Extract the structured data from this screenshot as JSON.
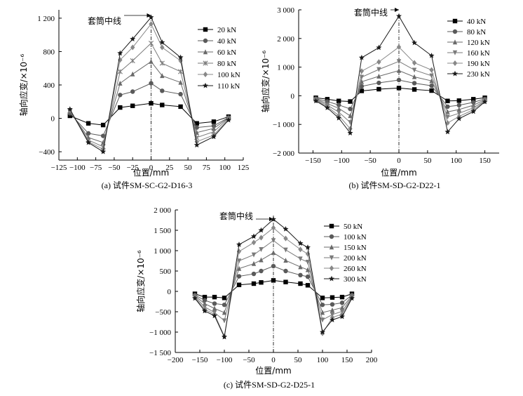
{
  "chart_data": [
    {
      "type": "line",
      "caption": "(a) 试件SM-SC-G2-D16-3",
      "xlabel": "位置/mm",
      "ylabel": "轴向应变/×10⁻⁶",
      "xlim": [
        -125,
        125
      ],
      "ylim": [
        -500,
        1300
      ],
      "xticks": [
        -125,
        -100,
        -75,
        -50,
        -25,
        0,
        25,
        50,
        75,
        100,
        125
      ],
      "yticks": [
        -400,
        0,
        400,
        800,
        1200
      ],
      "xtick_labels": [
        "−125",
        "−100",
        "−75",
        "−50",
        "−25",
        "0",
        "25",
        "50",
        "75",
        "100",
        "125"
      ],
      "ytick_labels": [
        "−400",
        "0",
        "400",
        "800",
        "1 200"
      ],
      "annotation": "套筒中线",
      "centerline_x": 0,
      "legend_position": "top-right",
      "x": [
        -110,
        -85,
        -65,
        -42,
        -25,
        0,
        15,
        40,
        62,
        85,
        105
      ],
      "series": [
        {
          "name": "20 kN",
          "marker": "square",
          "values": [
            30,
            -60,
            -80,
            130,
            150,
            180,
            160,
            140,
            -60,
            -40,
            20
          ]
        },
        {
          "name": "40 kN",
          "marker": "circle",
          "values": [
            60,
            -180,
            -210,
            280,
            320,
            420,
            330,
            290,
            -110,
            -90,
            10
          ]
        },
        {
          "name": "60 kN",
          "marker": "triangle",
          "values": [
            80,
            -230,
            -290,
            420,
            530,
            680,
            510,
            430,
            -170,
            -120,
            5
          ]
        },
        {
          "name": "80 kN",
          "marker": "x",
          "values": [
            90,
            -260,
            -340,
            560,
            690,
            900,
            660,
            560,
            -230,
            -160,
            0
          ]
        },
        {
          "name": "100 kN",
          "marker": "diamond",
          "values": [
            100,
            -280,
            -370,
            700,
            850,
            1130,
            850,
            690,
            -280,
            -200,
            -10
          ]
        },
        {
          "name": "110 kN",
          "marker": "star",
          "values": [
            110,
            -290,
            -400,
            780,
            950,
            1210,
            910,
            730,
            -320,
            -220,
            -20
          ]
        }
      ]
    },
    {
      "type": "line",
      "caption": "(b) 试件SM-SD-G2-D22-1",
      "xlabel": "位置/mm",
      "ylabel": "轴向应变/×10⁻⁶",
      "xlim": [
        -175,
        175
      ],
      "ylim": [
        -2000,
        3000
      ],
      "xticks": [
        -150,
        -100,
        -50,
        0,
        50,
        100,
        150
      ],
      "yticks": [
        -2000,
        -1000,
        0,
        1000,
        2000,
        3000
      ],
      "xtick_labels": [
        "−150",
        "−100",
        "−50",
        "0",
        "50",
        "100",
        "150"
      ],
      "ytick_labels": [
        "−2 000",
        "−1 000",
        "0",
        "1 000",
        "2 000",
        "3 000"
      ],
      "annotation": "套筒中线",
      "centerline_x": 0,
      "legend_position": "top-right",
      "x": [
        -145,
        -125,
        -105,
        -85,
        -65,
        -35,
        0,
        27,
        57,
        85,
        105,
        130,
        150
      ],
      "series": [
        {
          "name": "40 kN",
          "marker": "square",
          "values": [
            -70,
            -120,
            -180,
            -200,
            170,
            230,
            270,
            220,
            180,
            -180,
            -170,
            -120,
            -70
          ]
        },
        {
          "name": "80 kN",
          "marker": "circle",
          "values": [
            -100,
            -200,
            -320,
            -460,
            330,
            450,
            550,
            440,
            350,
            -380,
            -330,
            -230,
            -110
          ]
        },
        {
          "name": "120 kN",
          "marker": "triangle",
          "values": [
            -120,
            -270,
            -440,
            -700,
            490,
            680,
            880,
            660,
            520,
            -560,
            -480,
            -330,
            -140
          ]
        },
        {
          "name": "160 kN",
          "marker": "tri-down",
          "values": [
            -140,
            -330,
            -570,
            -930,
            650,
            920,
            1200,
            900,
            700,
            -740,
            -610,
            -420,
            -170
          ]
        },
        {
          "name": "190 kN",
          "marker": "diamond",
          "values": [
            -160,
            -380,
            -690,
            -1150,
            860,
            1180,
            1700,
            1150,
            900,
            -950,
            -720,
            -490,
            -190
          ]
        },
        {
          "name": "230 kN",
          "marker": "star",
          "values": [
            -180,
            -420,
            -780,
            -1300,
            1330,
            1680,
            2780,
            1850,
            1400,
            -1260,
            -800,
            -550,
            -210
          ]
        }
      ]
    },
    {
      "type": "line",
      "caption": "(c) 试件SM-SD-G2-D25-1",
      "xlabel": "位置/mm",
      "ylabel": "轴向应变/×10⁻⁶",
      "xlim": [
        -200,
        200
      ],
      "ylim": [
        -1500,
        2000
      ],
      "xticks": [
        -200,
        -150,
        -100,
        -50,
        0,
        50,
        100,
        150,
        200
      ],
      "yticks": [
        -1500,
        -1000,
        -500,
        0,
        500,
        1000,
        1500,
        2000
      ],
      "xtick_labels": [
        "−200",
        "−150",
        "−100",
        "−50",
        "0",
        "50",
        "100",
        "150",
        "200"
      ],
      "ytick_labels": [
        "−1 500",
        "−1 000",
        "−500",
        "0",
        "500",
        "1 000",
        "1 500",
        "2 000"
      ],
      "annotation": "套筒中线",
      "centerline_x": 0,
      "legend_position": "top-right",
      "x": [
        -160,
        -140,
        -120,
        -100,
        -70,
        -40,
        -25,
        0,
        25,
        55,
        70,
        100,
        120,
        140,
        160
      ],
      "series": [
        {
          "name": "50 kN",
          "marker": "square",
          "values": [
            -60,
            -140,
            -140,
            -160,
            160,
            190,
            220,
            270,
            230,
            190,
            150,
            -160,
            -150,
            -140,
            -60
          ]
        },
        {
          "name": "100 kN",
          "marker": "circle",
          "values": [
            -90,
            -220,
            -300,
            -330,
            370,
            430,
            500,
            620,
            500,
            400,
            360,
            -330,
            -320,
            -280,
            -90
          ]
        },
        {
          "name": "150 kN",
          "marker": "triangle",
          "values": [
            -110,
            -300,
            -420,
            -520,
            560,
            680,
            770,
            950,
            760,
            600,
            530,
            -520,
            -460,
            -400,
            -110
          ]
        },
        {
          "name": "200 kN",
          "marker": "tri-down",
          "values": [
            -130,
            -380,
            -520,
            -720,
            750,
            900,
            1030,
            1250,
            1020,
            800,
            720,
            -700,
            -570,
            -490,
            -130
          ]
        },
        {
          "name": "260 kN",
          "marker": "diamond",
          "values": [
            -150,
            -440,
            -560,
            -1100,
            980,
            1200,
            1320,
            1560,
            1300,
            1030,
            920,
            -1030,
            -640,
            -560,
            -150
          ]
        },
        {
          "name": "300 kN",
          "marker": "star",
          "values": [
            -170,
            -480,
            -600,
            -1120,
            1150,
            1350,
            1500,
            1770,
            1530,
            1180,
            1080,
            -1000,
            -700,
            -620,
            -170
          ]
        }
      ]
    }
  ]
}
